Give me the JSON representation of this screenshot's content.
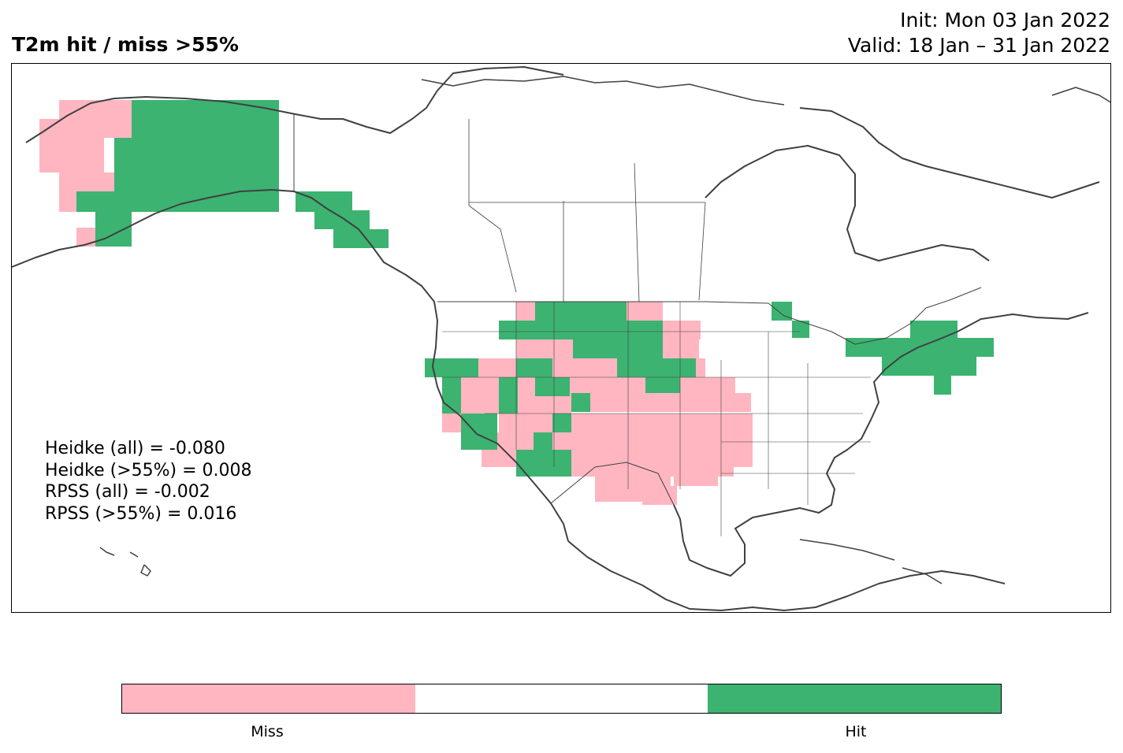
{
  "title": "T2m hit / miss  >55%",
  "init_line": "Init: Mon 03 Jan 2022",
  "valid_line": "Valid: 18 Jan – 31 Jan 2022",
  "colors": {
    "miss": "#ffb6c1",
    "neutral": "#ffffff",
    "hit": "#3cb371",
    "coast": "#404040"
  },
  "stats": [
    "Heidke (all) = -0.080",
    "Heidke (>55%) = 0.008",
    "RPSS (all) = -0.002",
    "RPSS (>55%) = 0.016"
  ],
  "colorbar": {
    "labels": [
      "Miss",
      "Hit"
    ],
    "segments": [
      "miss",
      "neutral",
      "hit"
    ]
  }
}
